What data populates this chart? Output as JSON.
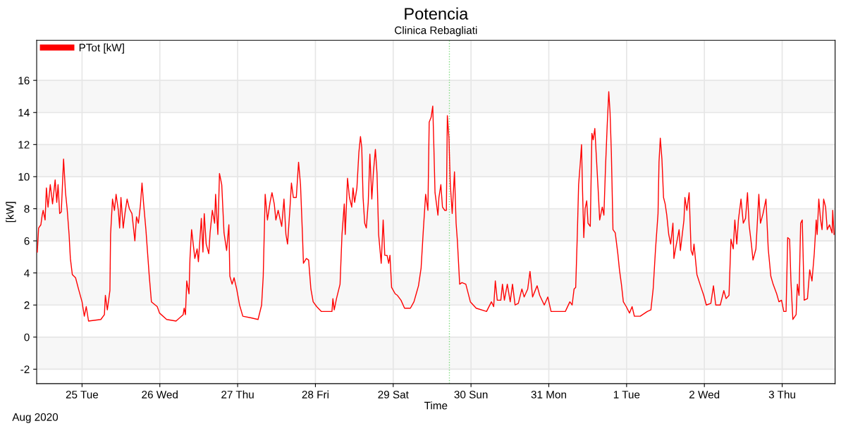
{
  "chart_data": {
    "type": "line",
    "title": "Potencia",
    "subtitle": "Clinica Rebagliati",
    "xlabel": "Time",
    "ylabel": "[kW]",
    "annotations": [
      "Aug 2020"
    ],
    "x": [
      "2020-08-24T10:12",
      "2020-08-24T10:36",
      "2020-08-24T11:18",
      "2020-08-24T11:42",
      "2020-08-24T12:00",
      "2020-08-24T12:36",
      "2020-08-24T13:00",
      "2020-08-24T13:30",
      "2020-08-24T14:12",
      "2020-08-24T14:54",
      "2020-08-24T15:42",
      "2020-08-24T16:12",
      "2020-08-24T16:36",
      "2020-08-24T17:06",
      "2020-08-24T17:36",
      "2020-08-24T18:18",
      "2020-08-24T18:54",
      "2020-08-24T19:24",
      "2020-08-24T20:00",
      "2020-08-24T20:24",
      "2020-08-24T21:00",
      "2020-08-24T22:00",
      "2020-08-24T22:54",
      "2020-08-25T00:00",
      "2020-08-25T00:42",
      "2020-08-25T01:18",
      "2020-08-25T02:00",
      "2020-08-25T05:48",
      "2020-08-25T06:54",
      "2020-08-25T07:12",
      "2020-08-25T07:48",
      "2020-08-25T08:36",
      "2020-08-25T08:48",
      "2020-08-25T09:24",
      "2020-08-25T10:00",
      "2020-08-25T10:30",
      "2020-08-25T11:12",
      "2020-08-25T11:36",
      "2020-08-25T12:00",
      "2020-08-25T12:42",
      "2020-08-25T13:18",
      "2020-08-25T13:54",
      "2020-08-25T14:36",
      "2020-08-25T15:24",
      "2020-08-25T16:18",
      "2020-08-25T16:48",
      "2020-08-25T17:24",
      "2020-08-25T18:00",
      "2020-08-25T18:30",
      "2020-08-25T19:00",
      "2020-08-25T19:42",
      "2020-08-25T20:42",
      "2020-08-25T21:24",
      "2020-08-25T23:12",
      "2020-08-25T23:54",
      "2020-08-26T02:06",
      "2020-08-26T05:00",
      "2020-08-26T07:12",
      "2020-08-26T07:30",
      "2020-08-26T07:54",
      "2020-08-26T08:18",
      "2020-08-26T09:00",
      "2020-08-26T09:18",
      "2020-08-26T09:48",
      "2020-08-26T10:48",
      "2020-08-26T11:30",
      "2020-08-26T11:54",
      "2020-08-26T12:48",
      "2020-08-26T13:18",
      "2020-08-26T13:42",
      "2020-08-26T14:18",
      "2020-08-26T15:06",
      "2020-08-26T15:30",
      "2020-08-26T16:12",
      "2020-08-26T16:54",
      "2020-08-26T17:12",
      "2020-08-26T17:54",
      "2020-08-26T18:24",
      "2020-08-26T19:06",
      "2020-08-26T19:48",
      "2020-08-26T20:36",
      "2020-08-26T21:18",
      "2020-08-26T21:36",
      "2020-08-26T22:18",
      "2020-08-26T22:54",
      "2020-08-26T23:42",
      "2020-08-27T00:36",
      "2020-08-27T01:36",
      "2020-08-27T04:12",
      "2020-08-27T06:18",
      "2020-08-27T07:24",
      "2020-08-27T07:54",
      "2020-08-27T08:30",
      "2020-08-27T09:12",
      "2020-08-27T10:00",
      "2020-08-27T10:36",
      "2020-08-27T11:18",
      "2020-08-27T11:48",
      "2020-08-27T12:30",
      "2020-08-27T13:36",
      "2020-08-27T14:18",
      "2020-08-27T14:54",
      "2020-08-27T15:24",
      "2020-08-27T16:06",
      "2020-08-27T16:36",
      "2020-08-27T17:12",
      "2020-08-27T18:06",
      "2020-08-27T18:48",
      "2020-08-27T19:24",
      "2020-08-27T20:00",
      "2020-08-27T20:18",
      "2020-08-27T21:12",
      "2020-08-27T21:54",
      "2020-08-27T22:36",
      "2020-08-27T23:18",
      "2020-08-28T00:24",
      "2020-08-28T01:48",
      "2020-08-28T05:06",
      "2020-08-28T05:24",
      "2020-08-28T05:48",
      "2020-08-28T06:30",
      "2020-08-28T07:36",
      "2020-08-28T08:12",
      "2020-08-28T08:54",
      "2020-08-28T09:12",
      "2020-08-28T09:54",
      "2020-08-28T10:30",
      "2020-08-28T11:12",
      "2020-08-28T11:36",
      "2020-08-28T12:06",
      "2020-08-28T12:48",
      "2020-08-28T13:24",
      "2020-08-28T13:54",
      "2020-08-28T14:18",
      "2020-08-28T14:42",
      "2020-08-28T15:12",
      "2020-08-28T15:42",
      "2020-08-28T16:18",
      "2020-08-28T16:48",
      "2020-08-28T17:24",
      "2020-08-28T17:54",
      "2020-08-28T18:30",
      "2020-08-28T19:00",
      "2020-08-28T19:30",
      "2020-08-28T20:18",
      "2020-08-28T20:54",
      "2020-08-28T21:24",
      "2020-08-28T22:06",
      "2020-08-28T22:36",
      "2020-08-28T23:00",
      "2020-08-28T23:30",
      "2020-08-29T00:36",
      "2020-08-29T01:18",
      "2020-08-29T02:24",
      "2020-08-29T03:30",
      "2020-08-29T05:18",
      "2020-08-29T06:24",
      "2020-08-29T07:06",
      "2020-08-29T07:48",
      "2020-08-29T08:36",
      "2020-08-29T09:18",
      "2020-08-29T10:00",
      "2020-08-29T10:42",
      "2020-08-29T11:06",
      "2020-08-29T11:42",
      "2020-08-29T12:12",
      "2020-08-29T12:30",
      "2020-08-29T12:54",
      "2020-08-29T13:48",
      "2020-08-29T14:06",
      "2020-08-29T14:42",
      "2020-08-29T15:12",
      "2020-08-29T15:54",
      "2020-08-29T16:24",
      "2020-08-29T16:42",
      "2020-08-29T17:12",
      "2020-08-29T17:36",
      "2020-08-29T18:12",
      "2020-08-29T18:54",
      "2020-08-29T19:24",
      "2020-08-29T19:48",
      "2020-08-29T20:30",
      "2020-08-29T21:12",
      "2020-08-29T22:24",
      "2020-08-29T23:48",
      "2020-08-30T01:36",
      "2020-08-30T04:48",
      "2020-08-30T06:18",
      "2020-08-30T07:00",
      "2020-08-30T07:30",
      "2020-08-30T08:06",
      "2020-08-30T09:12",
      "2020-08-30T09:42",
      "2020-08-30T10:18",
      "2020-08-30T11:12",
      "2020-08-30T12:06",
      "2020-08-30T12:48",
      "2020-08-30T13:36",
      "2020-08-30T14:36",
      "2020-08-30T15:42",
      "2020-08-30T16:24",
      "2020-08-30T17:30",
      "2020-08-30T18:12",
      "2020-08-30T19:00",
      "2020-08-30T20:24",
      "2020-08-30T21:12",
      "2020-08-30T22:36",
      "2020-08-30T23:42",
      "2020-08-31T00:42",
      "2020-08-31T02:36",
      "2020-08-31T05:06",
      "2020-08-31T06:30",
      "2020-08-31T07:12",
      "2020-08-31T07:48",
      "2020-08-31T08:18",
      "2020-08-31T08:48",
      "2020-08-31T09:12",
      "2020-08-31T09:42",
      "2020-08-31T10:06",
      "2020-08-31T10:24",
      "2020-08-31T10:48",
      "2020-08-31T11:12",
      "2020-08-31T11:42",
      "2020-08-31T12:06",
      "2020-08-31T12:48",
      "2020-08-31T13:18",
      "2020-08-31T13:42",
      "2020-08-31T14:12",
      "2020-08-31T14:36",
      "2020-08-31T15:12",
      "2020-08-31T15:42",
      "2020-08-31T16:30",
      "2020-08-31T17:00",
      "2020-08-31T17:30",
      "2020-08-31T18:00",
      "2020-08-31T18:30",
      "2020-08-31T18:54",
      "2020-08-31T19:18",
      "2020-08-31T19:48",
      "2020-08-31T20:30",
      "2020-08-31T21:18",
      "2020-08-31T21:48",
      "2020-08-31T22:24",
      "2020-08-31T23:00",
      "2020-08-31T23:54",
      "2020-09-01T00:54",
      "2020-09-01T01:42",
      "2020-09-01T02:24",
      "2020-09-01T04:12",
      "2020-09-01T06:24",
      "2020-09-01T07:30",
      "2020-09-01T08:12",
      "2020-09-01T08:54",
      "2020-09-01T09:42",
      "2020-09-01T10:00",
      "2020-09-01T10:24",
      "2020-09-01T10:54",
      "2020-09-01T11:24",
      "2020-09-01T11:54",
      "2020-09-01T12:24",
      "2020-09-01T13:00",
      "2020-09-01T13:36",
      "2020-09-01T14:18",
      "2020-09-01T14:36",
      "2020-09-01T15:06",
      "2020-09-01T16:12",
      "2020-09-01T16:36",
      "2020-09-01T17:42",
      "2020-09-01T18:00",
      "2020-09-01T18:36",
      "2020-09-01T19:18",
      "2020-09-01T19:54",
      "2020-09-01T20:24",
      "2020-09-01T20:48",
      "2020-09-01T21:42",
      "2020-09-01T22:48",
      "2020-09-01T23:48",
      "2020-09-02T00:36",
      "2020-09-02T02:00",
      "2020-09-02T02:48",
      "2020-09-02T03:30",
      "2020-09-02T04:54",
      "2020-09-02T06:00",
      "2020-09-02T06:42",
      "2020-09-02T07:36",
      "2020-09-02T08:12",
      "2020-09-02T08:54",
      "2020-09-02T09:24",
      "2020-09-02T10:00",
      "2020-09-02T10:30",
      "2020-09-02T11:18",
      "2020-09-02T12:00",
      "2020-09-02T12:42",
      "2020-09-02T13:18",
      "2020-09-02T13:48",
      "2020-09-02T14:30",
      "2020-09-02T15:00",
      "2020-09-02T15:54",
      "2020-09-02T16:18",
      "2020-09-02T16:48",
      "2020-09-02T17:18",
      "2020-09-02T18:06",
      "2020-09-02T18:30",
      "2020-09-02T19:00",
      "2020-09-02T19:42",
      "2020-09-02T20:30",
      "2020-09-02T21:12",
      "2020-09-02T22:18",
      "2020-09-02T23:00",
      "2020-09-02T23:48",
      "2020-09-03T00:30",
      "2020-09-03T01:12",
      "2020-09-03T01:42",
      "2020-09-03T02:18",
      "2020-09-03T02:42",
      "2020-09-03T03:18",
      "2020-09-03T04:18",
      "2020-09-03T04:42",
      "2020-09-03T05:12",
      "2020-09-03T05:42",
      "2020-09-03T06:12",
      "2020-09-03T06:48",
      "2020-09-03T07:48",
      "2020-09-03T08:30",
      "2020-09-03T09:12",
      "2020-09-03T09:54",
      "2020-09-03T10:30",
      "2020-09-03T10:48",
      "2020-09-03T11:18",
      "2020-09-03T11:48",
      "2020-09-03T12:18",
      "2020-09-03T12:48",
      "2020-09-03T13:24",
      "2020-09-03T13:54",
      "2020-09-03T14:36",
      "2020-09-03T15:24",
      "2020-09-03T15:36",
      "2020-09-03T16:00"
    ],
    "series": [
      {
        "name": "PTot [kW]",
        "color": "#ff0000",
        "values": [
          5.3,
          6.8,
          7.0,
          7.6,
          7.9,
          7.3,
          9.3,
          8.1,
          9.5,
          8.3,
          9.8,
          8.4,
          9.5,
          7.7,
          7.8,
          11.1,
          9.0,
          8.0,
          6.4,
          4.9,
          3.9,
          3.7,
          3.0,
          2.2,
          1.3,
          1.9,
          1.0,
          1.1,
          1.4,
          2.6,
          1.7,
          2.9,
          6.4,
          8.6,
          7.9,
          8.9,
          7.9,
          6.8,
          8.7,
          6.8,
          7.8,
          8.6,
          8.0,
          7.7,
          6.0,
          7.5,
          7.1,
          8.2,
          9.6,
          8.3,
          6.7,
          3.9,
          2.2,
          1.9,
          1.5,
          1.1,
          1.0,
          1.4,
          1.8,
          1.4,
          3.5,
          2.7,
          4.9,
          6.7,
          4.9,
          5.5,
          4.7,
          7.4,
          5.3,
          7.7,
          5.8,
          5.2,
          6.5,
          7.9,
          7.1,
          8.9,
          6.4,
          10.2,
          9.5,
          6.5,
          5.4,
          7.0,
          3.8,
          3.3,
          3.7,
          3.0,
          2.0,
          1.3,
          1.2,
          1.1,
          2.0,
          3.8,
          8.9,
          7.3,
          8.4,
          9.0,
          8.3,
          7.3,
          7.9,
          6.9,
          8.6,
          6.4,
          5.8,
          7.9,
          9.6,
          8.7,
          8.7,
          10.9,
          9.5,
          6.4,
          4.6,
          4.9,
          4.8,
          3.0,
          2.2,
          1.9,
          1.6,
          1.6,
          2.4,
          1.7,
          2.4,
          3.3,
          6.4,
          8.3,
          6.4,
          9.9,
          8.7,
          8.1,
          9.3,
          8.4,
          9.3,
          11.5,
          12.5,
          11.8,
          8.7,
          7.1,
          6.8,
          8.4,
          11.4,
          8.6,
          10.3,
          11.7,
          10.2,
          6.4,
          4.6,
          7.3,
          5.1,
          5.1,
          4.6,
          5.1,
          3.1,
          2.7,
          2.6,
          2.3,
          1.8,
          1.8,
          2.2,
          2.7,
          3.2,
          4.3,
          6.7,
          8.9,
          7.9,
          13.4,
          13.7,
          14.4,
          12.2,
          9.0,
          7.6,
          8.7,
          9.5,
          8.1,
          7.9,
          7.9,
          13.8,
          12.4,
          9.6,
          7.7,
          10.3,
          7.1,
          6.0,
          3.3,
          3.4,
          3.3,
          2.2,
          1.8,
          1.6,
          2.2,
          1.9,
          3.5,
          2.3,
          2.3,
          3.3,
          2.3,
          3.3,
          2.2,
          3.3,
          2.0,
          2.1,
          3.0,
          2.5,
          3.0,
          4.1,
          2.5,
          3.2,
          2.6,
          2.0,
          2.5,
          1.6,
          1.6,
          1.6,
          2.2,
          2.0,
          3.0,
          3.1,
          6.4,
          9.5,
          10.8,
          12.0,
          9.2,
          6.2,
          8.0,
          8.5,
          7.1,
          6.9,
          12.7,
          12.3,
          13.0,
          11.5,
          9.3,
          7.3,
          8.1,
          7.6,
          10.6,
          13.1,
          15.3,
          14.0,
          11.5,
          6.7,
          6.5,
          5.2,
          4.2,
          3.3,
          2.2,
          1.9,
          1.5,
          1.9,
          1.3,
          1.3,
          1.6,
          1.7,
          3.0,
          5.4,
          7.7,
          10.9,
          12.4,
          11.1,
          8.7,
          8.3,
          7.6,
          6.4,
          5.8,
          7.1,
          4.9,
          5.5,
          6.7,
          5.4,
          7.3,
          8.7,
          7.9,
          9.0,
          5.4,
          5.1,
          5.8,
          3.9,
          3.2,
          2.6,
          2.0,
          2.1,
          3.2,
          2.0,
          2.0,
          2.9,
          2.4,
          2.6,
          6.1,
          5.5,
          7.3,
          5.8,
          7.3,
          8.6,
          7.1,
          7.4,
          9.0,
          7.0,
          5.8,
          4.8,
          5.5,
          7.0,
          8.9,
          7.1,
          7.7,
          8.1,
          8.6,
          5.5,
          3.8,
          3.3,
          2.7,
          2.2,
          2.3,
          1.6,
          1.6,
          6.2,
          6.1,
          3.5,
          1.1,
          1.4,
          3.3,
          2.6,
          7.1,
          7.3,
          2.3,
          2.4,
          4.2,
          3.5,
          5.2,
          7.3,
          6.4,
          8.6,
          7.4,
          6.7,
          8.6,
          8.1,
          6.7,
          7.0,
          6.5,
          7.9,
          6.4
        ]
      }
    ],
    "xlim": [
      "2020-08-24T10:00",
      "2020-09-03T16:20"
    ],
    "xticks": [
      {
        "value": "2020-08-25",
        "label": "25 Tue"
      },
      {
        "value": "2020-08-26",
        "label": "26 Wed"
      },
      {
        "value": "2020-08-27",
        "label": "27 Thu"
      },
      {
        "value": "2020-08-28",
        "label": "28 Fri"
      },
      {
        "value": "2020-08-29",
        "label": "29 Sat"
      },
      {
        "value": "2020-08-30",
        "label": "30 Sun"
      },
      {
        "value": "2020-08-31",
        "label": "31 Mon"
      },
      {
        "value": "2020-09-01",
        "label": "1 Tue"
      },
      {
        "value": "2020-09-02",
        "label": "2 Wed"
      },
      {
        "value": "2020-09-03",
        "label": "3 Thu"
      }
    ],
    "ylim": [
      -2.9,
      18.5
    ],
    "yticks": [
      -2,
      0,
      2,
      4,
      6,
      8,
      10,
      12,
      14,
      16
    ],
    "ref_lines": [
      {
        "axis": "x",
        "value": "2020-08-29T17:20",
        "color": "#7fdc7f",
        "line_style": "dotted"
      }
    ],
    "bands": [
      {
        "axis": "y",
        "from": -2,
        "to": 0,
        "color": "#f7f7f7"
      },
      {
        "axis": "y",
        "from": 2,
        "to": 4,
        "color": "#f7f7f7"
      },
      {
        "axis": "y",
        "from": 6,
        "to": 8,
        "color": "#f7f7f7"
      },
      {
        "axis": "y",
        "from": 10,
        "to": 12,
        "color": "#f7f7f7"
      },
      {
        "axis": "y",
        "from": 14,
        "to": 16,
        "color": "#f7f7f7"
      }
    ],
    "grid": true,
    "legend": "top left",
    "marker": "none",
    "line_style": "solid"
  }
}
